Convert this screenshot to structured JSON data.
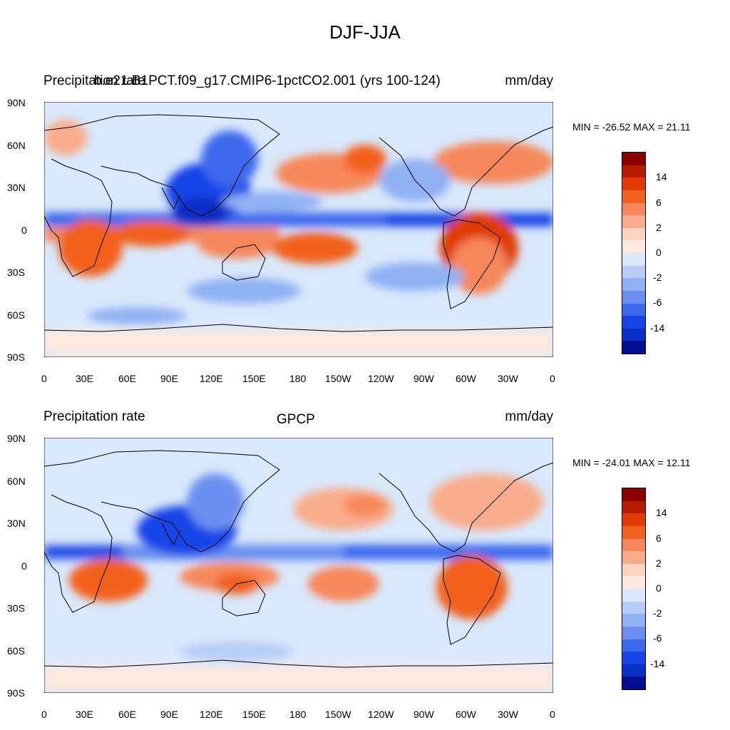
{
  "title": "DJF-JJA",
  "colors": {
    "scale": [
      "#8b0000",
      "#b71c00",
      "#e13a05",
      "#f2601f",
      "#f6875a",
      "#f9ac8b",
      "#fcd3bf",
      "#fde9df",
      "#d9e8fb",
      "#b7cdf6",
      "#8fb0f3",
      "#6b8ff0",
      "#3c69ee",
      "#1545e8",
      "#0a2fc4",
      "#030d8f"
    ],
    "land_outline": "#000000",
    "background_field": "#d9e8fb"
  },
  "colorbar": {
    "labels": [
      "14",
      "6",
      "2",
      "0",
      "-2",
      "-6",
      "-14"
    ]
  },
  "axes": {
    "lat_ticks": [
      "90N",
      "60N",
      "30N",
      "0",
      "30S",
      "60S",
      "90S"
    ],
    "lon_ticks": [
      "0",
      "30E",
      "60E",
      "90E",
      "120E",
      "150E",
      "180",
      "150W",
      "120W",
      "90W",
      "60W",
      "30W",
      "0"
    ]
  },
  "panels": [
    {
      "left_title": "Precipitation rate",
      "center_title": "b.e21.B1PCT.f09_g17.CMIP6-1pctCO2.001 (yrs 100-124)",
      "right_title": "mm/day",
      "minmax": "MIN = -26.52 MAX =  21.11"
    },
    {
      "left_title": "Precipitation rate",
      "center_title": "GPCP",
      "right_title": "mm/day",
      "minmax": "MIN = -24.01 MAX =  12.11"
    }
  ]
}
